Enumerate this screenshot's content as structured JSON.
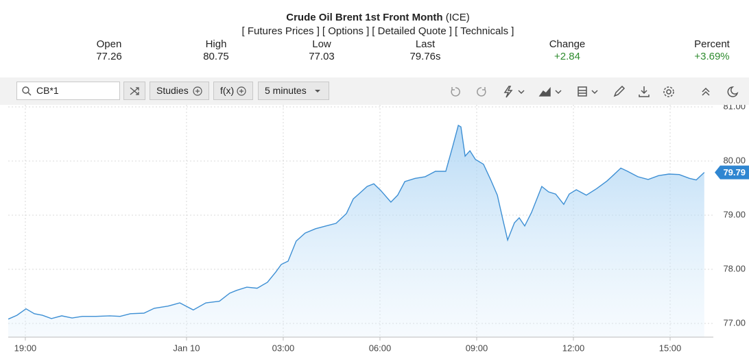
{
  "header": {
    "title": "Crude Oil Brent 1st Front Month",
    "exchange": "(ICE)",
    "links": [
      "[ Futures Prices ]",
      "[ Options ]",
      "[ Detailed Quote ]",
      "[ Technicals ]"
    ],
    "stats": [
      {
        "label": "Open",
        "value": "77.26"
      },
      {
        "label": "High",
        "value": "80.75"
      },
      {
        "label": "Low",
        "value": "77.03"
      },
      {
        "label": "Last",
        "value": "79.76s"
      },
      {
        "label": "Change",
        "value": "+2.84"
      },
      {
        "label": "Percent",
        "value": "+3.69%"
      }
    ]
  },
  "toolbar": {
    "symbol": "CB*1",
    "buttons": [
      "Studies",
      "f(x)",
      "5 minutes"
    ]
  },
  "chart_data": {
    "type": "area",
    "color": "#3d8fd4",
    "grid": true,
    "x": [
      18.47,
      18.74,
      19.02,
      19.28,
      19.53,
      19.81,
      20.13,
      20.45,
      20.77,
      21.19,
      21.62,
      21.94,
      22.26,
      22.68,
      23.0,
      23.43,
      23.79,
      24.21,
      24.6,
      25.02,
      25.34,
      25.55,
      25.87,
      26.19,
      26.51,
      26.77,
      26.94,
      27.15,
      27.4,
      27.68,
      28.0,
      28.32,
      28.64,
      28.96,
      29.17,
      29.38,
      29.6,
      29.81,
      30.02,
      30.34,
      30.55,
      30.77,
      31.09,
      31.4,
      31.72,
      32.04,
      32.26,
      32.43,
      32.51,
      32.64,
      32.79,
      32.96,
      33.21,
      33.43,
      33.64,
      33.81,
      33.96,
      34.17,
      34.32,
      34.49,
      34.7,
      35.02,
      35.23,
      35.45,
      35.7,
      35.87,
      36.09,
      36.4,
      36.72,
      37.04,
      37.26,
      37.47,
      37.68,
      38.0,
      38.32,
      38.64,
      38.96,
      39.28,
      39.6,
      39.81,
      40.06
    ],
    "values": [
      77.08,
      77.15,
      77.27,
      77.18,
      77.15,
      77.09,
      77.14,
      77.1,
      77.13,
      77.13,
      77.14,
      77.13,
      77.18,
      77.19,
      77.28,
      77.32,
      77.38,
      77.25,
      77.38,
      77.41,
      77.56,
      77.61,
      77.67,
      77.65,
      77.76,
      77.95,
      78.09,
      78.15,
      78.52,
      78.67,
      78.75,
      78.8,
      78.85,
      79.03,
      79.3,
      79.41,
      79.53,
      79.58,
      79.46,
      79.24,
      79.37,
      79.62,
      79.68,
      79.71,
      79.81,
      79.81,
      80.28,
      80.66,
      80.63,
      80.09,
      80.19,
      80.03,
      79.94,
      79.66,
      79.37,
      78.92,
      78.54,
      78.86,
      78.95,
      78.8,
      79.05,
      79.53,
      79.43,
      79.39,
      79.2,
      79.39,
      79.47,
      79.37,
      79.49,
      79.63,
      79.75,
      79.87,
      79.81,
      79.71,
      79.66,
      79.73,
      79.76,
      79.75,
      79.68,
      79.65,
      79.79
    ],
    "current_price": {
      "value": 79.79,
      "label": "79.79"
    },
    "xlim": [
      18.47,
      40.34
    ],
    "xticks": [
      {
        "value": 19,
        "label": "19:00"
      },
      {
        "value": 24,
        "label": "Jan 10"
      },
      {
        "value": 27,
        "label": "03:00"
      },
      {
        "value": 30,
        "label": "06:00"
      },
      {
        "value": 33,
        "label": "09:00"
      },
      {
        "value": 36,
        "label": "12:00"
      },
      {
        "value": 39,
        "label": "15:00"
      }
    ],
    "ylim": [
      76.75,
      81.0
    ],
    "yticks": [
      {
        "value": 77,
        "label": "77.00"
      },
      {
        "value": 78,
        "label": "78.00"
      },
      {
        "value": 79,
        "label": "79.00"
      },
      {
        "value": 80,
        "label": "80.00"
      },
      {
        "value": 81,
        "label": "81.00"
      }
    ]
  }
}
